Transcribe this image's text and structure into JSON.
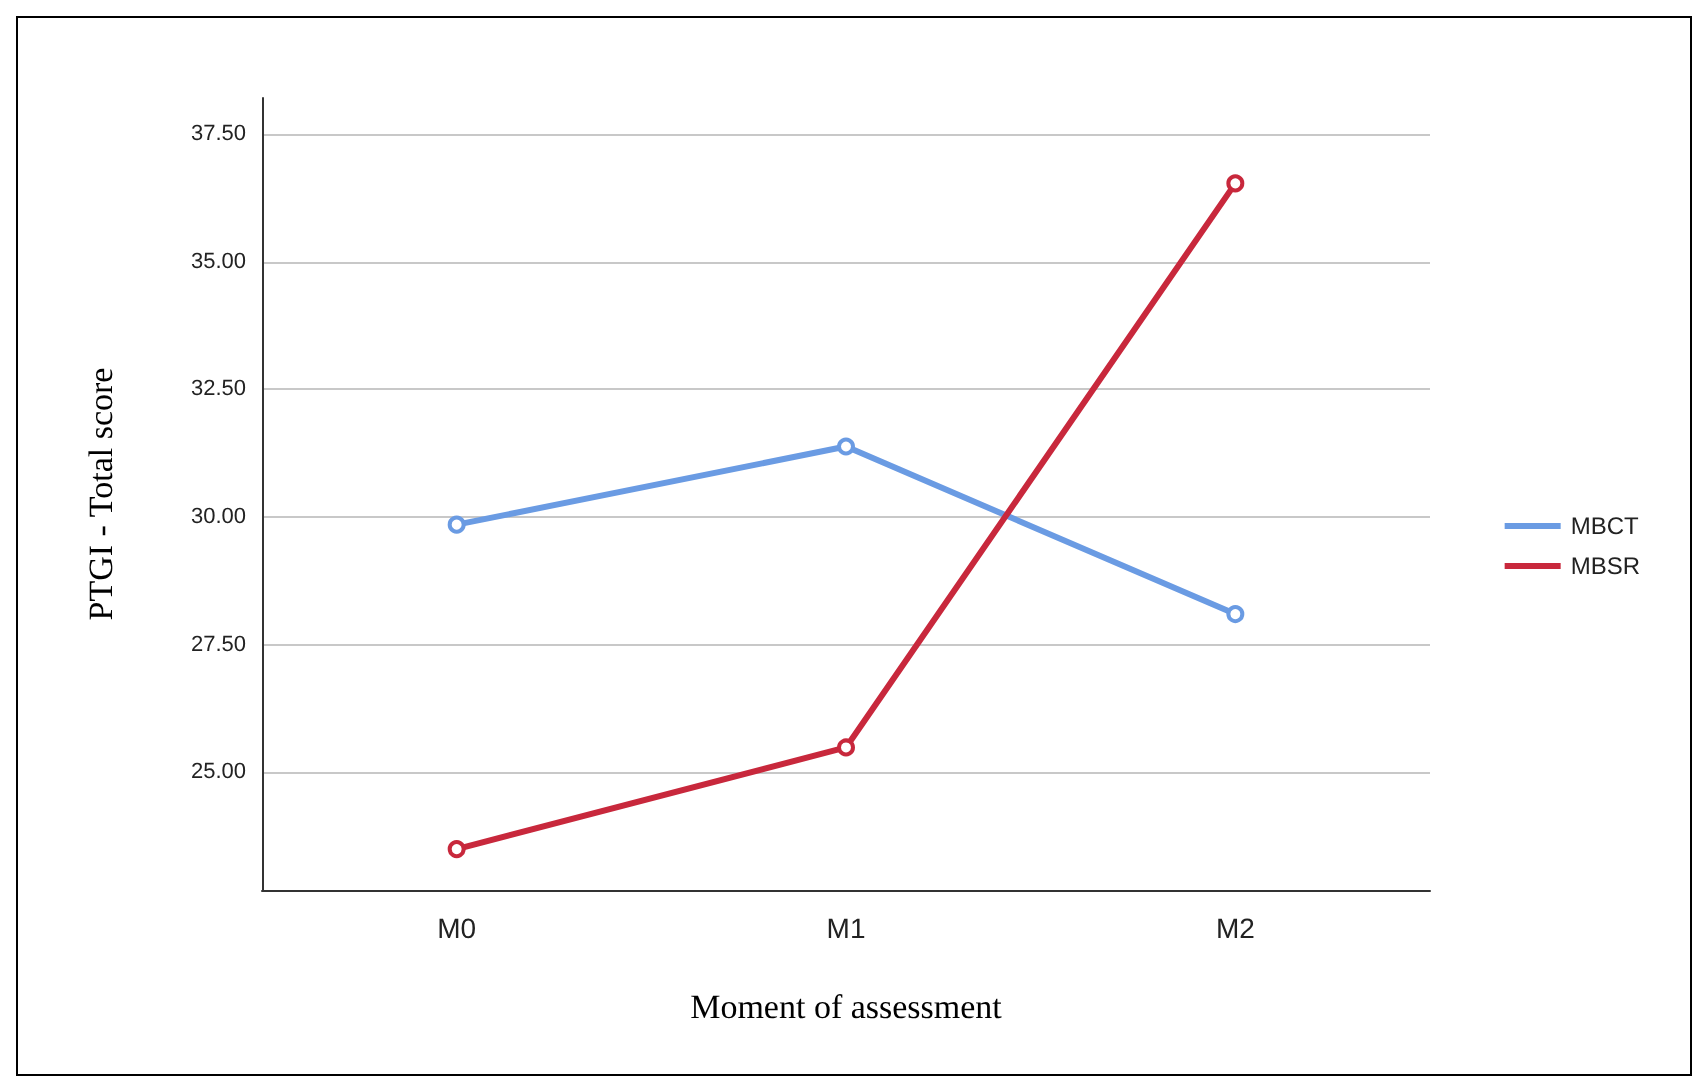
{
  "chart_data": {
    "type": "line",
    "xlabel": "Moment of assessment",
    "ylabel": "PTGI - Total score",
    "categories": [
      "M0",
      "M1",
      "M2"
    ],
    "series": [
      {
        "name": "MBCT",
        "color": "#6a9be3",
        "values": [
          29.85,
          31.38,
          28.1
        ]
      },
      {
        "name": "MBSR",
        "color": "#c8283c",
        "values": [
          23.5,
          25.49,
          36.53
        ]
      }
    ],
    "ylim": [
      22.7,
      38.2
    ],
    "yticks": [
      {
        "value": 25,
        "label": "25.00"
      },
      {
        "value": 27.5,
        "label": "27.50"
      },
      {
        "value": 30,
        "label": "30.00"
      },
      {
        "value": 32.5,
        "label": "32.50"
      },
      {
        "value": 35,
        "label": "35.00"
      },
      {
        "value": 37.5,
        "label": "37.50"
      }
    ],
    "grid": "y",
    "legend": "right",
    "marker": "circle",
    "line_style": "solid"
  }
}
